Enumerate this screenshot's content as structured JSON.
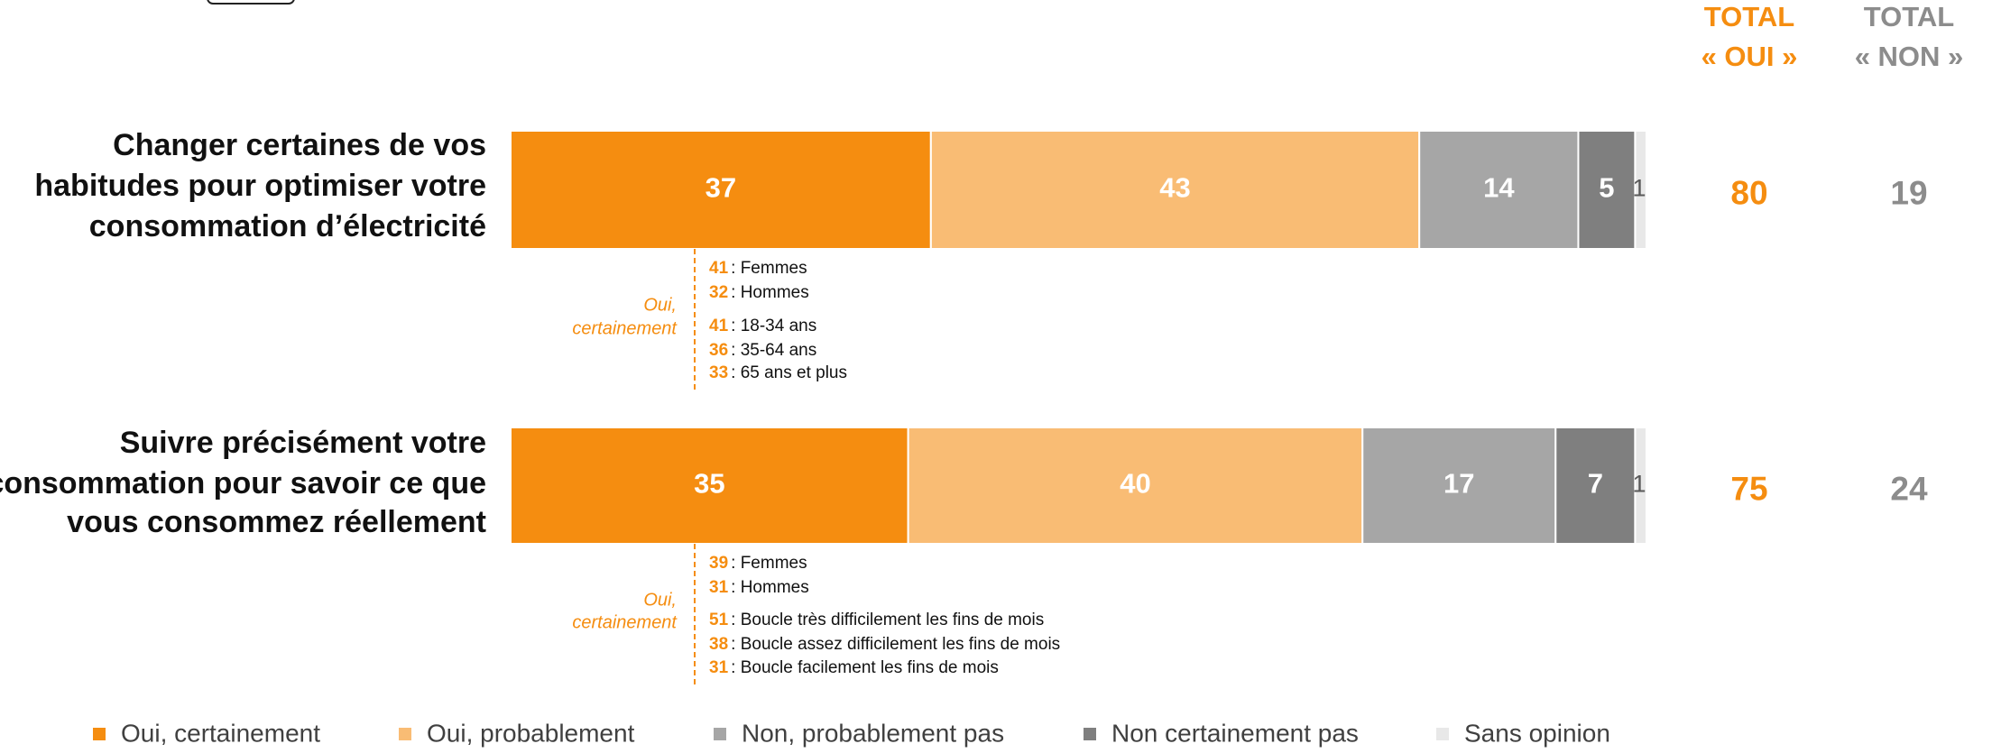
{
  "chart_data": {
    "type": "stacked-bar",
    "categories": [
      [
        "Changer certaines de vos",
        "habitudes pour optimiser votre",
        "consommation d’électricité"
      ],
      [
        "Suivre précisément votre",
        "consommation pour savoir ce que",
        "vous consommez réellement"
      ]
    ],
    "series": [
      {
        "name": "Oui, certainement",
        "color": "#f58d10",
        "label_color": "#ffffff",
        "values": [
          37,
          35
        ]
      },
      {
        "name": "Oui, probablement",
        "color": "#f9bc74",
        "label_color": "#ffffff",
        "values": [
          43,
          40
        ]
      },
      {
        "name": "Non, probablement pas",
        "color": "#a6a6a6",
        "label_color": "#ffffff",
        "values": [
          14,
          17
        ]
      },
      {
        "name": "Non certainement pas",
        "color": "#7f7f7f",
        "label_color": "#ffffff",
        "values": [
          5,
          7
        ]
      },
      {
        "name": "Sans opinion",
        "color": "#e8e8e8",
        "label_color": "#595959",
        "values": [
          1,
          1
        ]
      }
    ],
    "totals": [
      {
        "header": [
          "TOTAL",
          "« OUI »"
        ],
        "color": "#f58d10",
        "values": [
          80,
          75
        ]
      },
      {
        "header": [
          "TOTAL",
          "« NON »"
        ],
        "color": "#8c8c8c",
        "values": [
          19,
          24
        ]
      }
    ],
    "annotations": [
      {
        "label": [
          "Oui,",
          "certainement"
        ],
        "groups": [
          [
            {
              "value": 41,
              "label": ": Femmes"
            },
            {
              "value": 32,
              "label": ": Hommes"
            }
          ],
          [
            {
              "value": 41,
              "label": ": 18-34 ans"
            },
            {
              "value": 36,
              "label": ": 35-64 ans"
            },
            {
              "value": 33,
              "label": ": 65 ans et plus"
            }
          ]
        ]
      },
      {
        "label": [
          "Oui,",
          "certainement"
        ],
        "groups": [
          [
            {
              "value": 39,
              "label": ": Femmes"
            },
            {
              "value": 31,
              "label": ": Hommes"
            }
          ],
          [
            {
              "value": 51,
              "label": ": Boucle très difficilement les fins de mois"
            },
            {
              "value": 38,
              "label": ": Boucle assez difficilement les fins de mois"
            },
            {
              "value": 31,
              "label": ": Boucle facilement les fins de mois"
            }
          ]
        ]
      }
    ]
  }
}
